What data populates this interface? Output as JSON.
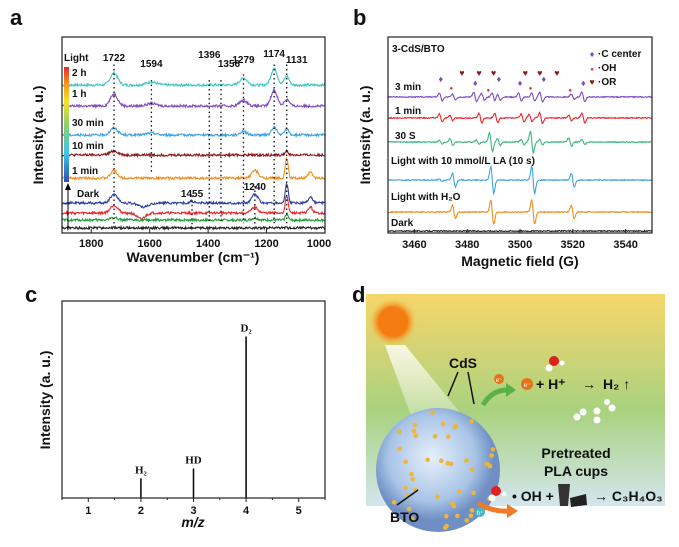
{
  "chart_data": [
    {
      "panel": "a",
      "type": "line",
      "xlabel": "Wavenumber (cm⁻¹)",
      "ylabel": "Intensity (a. u.)",
      "xlim": [
        1900,
        1000
      ],
      "ylim": [
        0,
        10
      ],
      "xticks": [
        1800,
        1600,
        1400,
        1200,
        1000
      ],
      "peak_labels": [
        "1722",
        "1594",
        "1396",
        "1356",
        "1279",
        "1174",
        "1131",
        "1455",
        "1240"
      ],
      "legend_title": "Light",
      "legend_labels": [
        "2 h",
        "1 h",
        "30 min",
        "10 min",
        "1 min",
        "Dark"
      ],
      "series": [
        {
          "name": "2 h",
          "color": "#3ec6c6",
          "offset": 7.55,
          "peaks": [
            [
              1722,
              0.6,
              18
            ],
            [
              1594,
              0.15,
              25
            ],
            [
              1279,
              0.35,
              18
            ],
            [
              1174,
              0.85,
              15
            ],
            [
              1131,
              0.45,
              12
            ]
          ]
        },
        {
          "name": "1 h",
          "color": "#7d4cc2",
          "offset": 6.48,
          "peaks": [
            [
              1722,
              0.6,
              18
            ],
            [
              1594,
              0.12,
              25
            ],
            [
              1279,
              0.3,
              18
            ],
            [
              1174,
              0.8,
              15
            ],
            [
              1131,
              0.35,
              12
            ]
          ]
        },
        {
          "name": "30 min",
          "color": "#3fa4e0",
          "offset": 5.0,
          "peaks": [
            [
              1722,
              0.35,
              18
            ],
            [
              1594,
              0.1,
              25
            ],
            [
              1279,
              0.2,
              15
            ],
            [
              1174,
              0.4,
              12
            ],
            [
              1131,
              0.3,
              10
            ]
          ]
        },
        {
          "name": "10 min",
          "color": "#8b1a1a",
          "offset": 3.98,
          "peaks": [
            [
              1722,
              0.2,
              20
            ],
            [
              1131,
              0.2,
              8
            ]
          ]
        },
        {
          "name": "1 min",
          "color": "#f28c1e",
          "offset": 2.8,
          "peaks": [
            [
              1722,
              0.4,
              15
            ],
            [
              1240,
              0.4,
              15
            ],
            [
              1131,
              1.0,
              7
            ],
            [
              1050,
              0.3,
              10
            ]
          ]
        },
        {
          "name": "Dark",
          "color": "#2b3fa0",
          "offset": 1.53,
          "peaks": [
            [
              1722,
              0.45,
              18
            ],
            [
              1620,
              -0.2,
              25
            ],
            [
              1455,
              0.1,
              8
            ],
            [
              1240,
              0.45,
              15
            ],
            [
              1131,
              1.0,
              7
            ],
            [
              1050,
              0.3,
              10
            ]
          ]
        },
        {
          "name": "red",
          "color": "#e8262b",
          "offset": 1.02,
          "peaks": [
            [
              1722,
              0.4,
              18
            ],
            [
              1630,
              -0.3,
              20
            ],
            [
              1240,
              0.3,
              15
            ],
            [
              1131,
              0.9,
              7
            ],
            [
              1050,
              0.3,
              10
            ]
          ]
        },
        {
          "name": "green",
          "color": "#1e9a3a",
          "offset": 0.66,
          "peaks": [
            [
              1722,
              0.12,
              18
            ],
            [
              1240,
              0.1,
              15
            ],
            [
              1131,
              0.3,
              7
            ]
          ]
        },
        {
          "name": "black",
          "color": "#222222",
          "offset": 0.26,
          "peaks": []
        }
      ]
    },
    {
      "panel": "b",
      "type": "line",
      "xlabel": "Magnetic field (G)",
      "ylabel": "Intensity (a. u.)",
      "xlim": [
        3450,
        3550
      ],
      "ylim": [
        0,
        10
      ],
      "xticks": [
        3460,
        3480,
        3500,
        3520,
        3540
      ],
      "title": "3-CdS/BTO",
      "legend": [
        {
          "label": "·C center",
          "color": "#7d4cc2",
          "marker": "diamond",
          "positions": [
            3470,
            3483,
            3492,
            3500,
            3509,
            3524
          ]
        },
        {
          "label": "·OH",
          "color": "#e8262b",
          "marker": "dot",
          "positions": [
            3474,
            3488,
            3504,
            3519
          ]
        },
        {
          "label": "·OR",
          "color": "#8b1a1a",
          "marker": "heart",
          "positions": [
            3478,
            3484.5,
            3490,
            3502,
            3507.5,
            3514
          ]
        }
      ],
      "series": [
        {
          "name": "3 min",
          "color": "#7d4cc2",
          "offset": 6.94,
          "lines": [
            [
              3470,
              0.3
            ],
            [
              3475,
              0.2
            ],
            [
              3483,
              0.35
            ],
            [
              3486,
              0.25
            ],
            [
              3490,
              0.3
            ],
            [
              3492,
              0.25
            ],
            [
              3500,
              0.3
            ],
            [
              3505,
              0.3
            ],
            [
              3508,
              0.35
            ],
            [
              3520,
              0.2
            ],
            [
              3524,
              0.35
            ]
          ]
        },
        {
          "name": "1 min",
          "color": "#e8262b",
          "offset": 5.87,
          "lines": [
            [
              3470,
              0.3
            ],
            [
              3474,
              0.2
            ],
            [
              3485,
              0.35
            ],
            [
              3491,
              0.35
            ],
            [
              3501,
              0.3
            ],
            [
              3504,
              0.25
            ],
            [
              3508,
              0.4
            ],
            [
              3519,
              0.2
            ],
            [
              3524,
              0.35
            ]
          ]
        },
        {
          "name": "30 S",
          "color": "#3cb878",
          "offset": 4.64,
          "lines": [
            [
              3470,
              0.15
            ],
            [
              3474,
              0.25
            ],
            [
              3484,
              0.15
            ],
            [
              3489,
              0.7
            ],
            [
              3492,
              0.25
            ],
            [
              3501,
              0.2
            ],
            [
              3504.5,
              0.8
            ],
            [
              3508,
              0.2
            ],
            [
              3519,
              0.3
            ],
            [
              3524,
              0.2
            ]
          ]
        },
        {
          "name": "Light with 10 mmol/L LA (10 s)",
          "color": "#3fa4e0",
          "offset": 2.7,
          "lines": [
            [
              3470,
              0.1
            ],
            [
              3475,
              0.5
            ],
            [
              3489.5,
              1.0
            ],
            [
              3505,
              1.0
            ],
            [
              3520,
              0.5
            ]
          ]
        },
        {
          "name": "Light with H₂O",
          "color": "#f28c1e",
          "offset": 1.07,
          "lines": [
            [
              3475,
              0.5
            ],
            [
              3489.5,
              0.9
            ],
            [
              3505,
              0.9
            ],
            [
              3520,
              0.5
            ]
          ]
        },
        {
          "name": "Dark",
          "color": "#222222",
          "offset": 0.1,
          "lines": []
        }
      ]
    },
    {
      "panel": "c",
      "type": "bar",
      "xlabel": "m/z",
      "ylabel": "Intensity (a. u.)",
      "xlim": [
        0.5,
        5.5
      ],
      "ylim": [
        0,
        1
      ],
      "xticks": [
        1,
        2,
        3,
        4,
        5
      ],
      "categories": [
        "H₂",
        "HD",
        "D₂"
      ],
      "x": [
        2,
        3,
        4
      ],
      "values": [
        0.1,
        0.15,
        0.82
      ]
    }
  ],
  "panels": {
    "a": "a",
    "b": "b",
    "c": "c",
    "d": "d"
  },
  "diagram": {
    "cds": "CdS",
    "bto": "BTO",
    "electron": "e⁻",
    "hole": "h⁺",
    "h2_reaction_a": "+ H⁺",
    "h2_reaction_arrow": "→",
    "h2_reaction_b": "H₂ ↑",
    "pla_1": "Pretreated",
    "pla_2": "PLA cups",
    "oh_reaction": "• OH +",
    "product": "→ C₃H₄O₃"
  }
}
